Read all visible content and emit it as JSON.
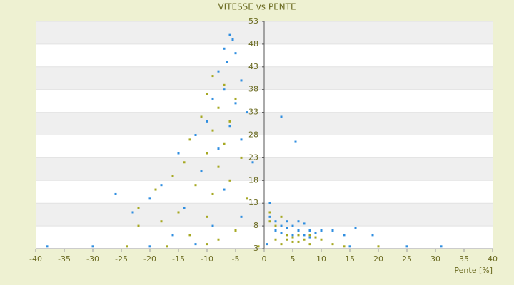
{
  "chart_data": {
    "type": "scatter",
    "title": "VITESSE vs PENTE",
    "x_label": "Pente [%]",
    "xlim": [
      -40,
      40
    ],
    "xticks": [
      -40,
      -35,
      -30,
      -25,
      -20,
      -15,
      -10,
      -5,
      0,
      5,
      10,
      15,
      20,
      25,
      30,
      35,
      40
    ],
    "ylim": [
      3,
      53
    ],
    "yticks": [
      3,
      8,
      13,
      18,
      23,
      28,
      33,
      38,
      43,
      48,
      53
    ],
    "grid": true,
    "series": [
      {
        "color": "#2f8ee0",
        "x": [
          -6,
          -5.5,
          -7,
          -5,
          -6.5,
          -8,
          -4,
          -7,
          -9,
          -5,
          -3,
          -10,
          -6,
          -12,
          -4,
          -8,
          -15,
          -2,
          -11,
          -18,
          -7,
          -20,
          -26,
          -14,
          -23,
          -4,
          -9,
          -16,
          -30,
          -38,
          -20,
          -12,
          1,
          2,
          3,
          4,
          5,
          6,
          7,
          8,
          9,
          5,
          4,
          6,
          3,
          2,
          7,
          10,
          12,
          14,
          16,
          19,
          3,
          5.5,
          1,
          0.5,
          15,
          25,
          31,
          8
        ],
        "values": [
          50,
          49,
          47,
          46,
          44,
          42,
          40,
          38,
          36,
          35,
          33,
          31,
          30,
          28,
          27,
          25,
          24,
          22,
          20,
          17,
          16,
          14,
          15,
          12,
          11,
          10,
          8,
          6,
          3.5,
          3.5,
          3.5,
          4,
          10,
          9,
          8,
          7.5,
          8,
          7,
          8.5,
          7,
          6.5,
          6,
          9,
          9,
          6.5,
          7,
          6,
          7,
          7,
          6,
          7.5,
          6,
          32,
          26.5,
          13,
          4,
          3.5,
          3.5,
          3.5,
          5.5
        ]
      },
      {
        "color": "#a6a822",
        "x": [
          -9,
          -7,
          -10,
          -5,
          -8,
          -11,
          -6,
          -9,
          -13,
          -7,
          -10,
          -4,
          -14,
          -8,
          -16,
          -6,
          -12,
          -19,
          -9,
          -3,
          -22,
          -15,
          -10,
          -18,
          -22,
          -5,
          -13,
          -8,
          -24,
          -17,
          -1,
          -10,
          1,
          2,
          3,
          4,
          5,
          6,
          7,
          8,
          9,
          2,
          3,
          5,
          10,
          12,
          14,
          20,
          1,
          6,
          4,
          8
        ],
        "values": [
          41,
          39,
          37,
          36,
          34,
          32,
          31,
          29,
          27,
          26,
          24,
          23,
          22,
          21,
          19,
          18,
          17,
          16,
          15,
          14,
          12,
          11,
          10,
          9,
          8,
          7,
          6,
          5,
          3.5,
          3.5,
          3.5,
          4,
          9,
          8,
          10,
          6,
          5.5,
          6,
          5,
          6,
          5.5,
          5,
          4,
          4.5,
          5,
          4,
          3.5,
          3.5,
          11,
          4.5,
          5,
          4
        ]
      }
    ]
  }
}
